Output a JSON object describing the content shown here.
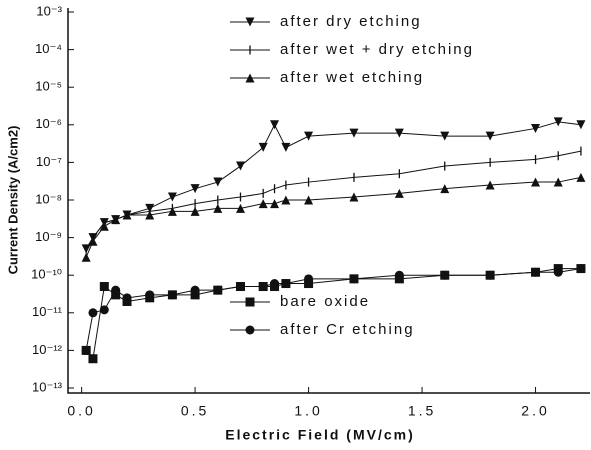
{
  "chart_data": {
    "type": "line",
    "xlabel": "Electric Field (MV/cm)",
    "ylabel": "Current Density (A/cm2)",
    "x": [
      0.02,
      0.05,
      0.1,
      0.15,
      0.2,
      0.3,
      0.4,
      0.5,
      0.6,
      0.7,
      0.8,
      0.85,
      0.9,
      1.0,
      1.2,
      1.4,
      1.6,
      1.8,
      2.0,
      2.1,
      2.2
    ],
    "series": [
      {
        "name": "after dry etching",
        "color": "#111111",
        "marker": "triangle-down",
        "values": [
          5e-10,
          1e-09,
          2.5e-09,
          3e-09,
          4e-09,
          6e-09,
          1.2e-08,
          2e-08,
          3e-08,
          8e-08,
          2.5e-07,
          1e-06,
          2.5e-07,
          5e-07,
          6e-07,
          6e-07,
          5e-07,
          5e-07,
          8e-07,
          1.2e-06,
          1e-06
        ]
      },
      {
        "name": "after wet + dry etching",
        "color": "#111111",
        "marker": "vline",
        "values": [
          5e-10,
          1e-09,
          2.5e-09,
          3e-09,
          4e-09,
          5e-09,
          6e-09,
          8e-09,
          1e-08,
          1.2e-08,
          1.5e-08,
          2e-08,
          2.5e-08,
          3e-08,
          4e-08,
          5e-08,
          8e-08,
          1e-07,
          1.2e-07,
          1.5e-07,
          2e-07
        ]
      },
      {
        "name": "after wet etching",
        "color": "#111111",
        "marker": "triangle-up",
        "values": [
          3e-10,
          8e-10,
          2e-09,
          3e-09,
          4e-09,
          4e-09,
          5e-09,
          5e-09,
          6e-09,
          6e-09,
          8e-09,
          8e-09,
          1e-08,
          1e-08,
          1.2e-08,
          1.5e-08,
          2e-08,
          2.5e-08,
          3e-08,
          3e-08,
          4e-08
        ]
      },
      {
        "name": "bare oxide",
        "color": "#111111",
        "marker": "square",
        "values": [
          1e-12,
          6e-13,
          5e-11,
          3e-11,
          2e-11,
          2.5e-11,
          3e-11,
          3e-11,
          4e-11,
          5e-11,
          5e-11,
          5e-11,
          6e-11,
          6e-11,
          8e-11,
          8e-11,
          1e-10,
          1e-10,
          1.2e-10,
          1.5e-10,
          1.5e-10
        ]
      },
      {
        "name": "after Cr etching",
        "color": "#111111",
        "marker": "circle",
        "values": [
          1e-12,
          1e-11,
          1.2e-11,
          4e-11,
          2.5e-11,
          3e-11,
          3e-11,
          4e-11,
          4e-11,
          5e-11,
          5e-11,
          6e-11,
          6e-11,
          8e-11,
          8e-11,
          1e-10,
          1e-10,
          1e-10,
          1.2e-10,
          1.2e-10,
          1.5e-10
        ]
      }
    ],
    "xlim": [
      -0.06,
      2.24
    ],
    "xticks": [
      {
        "value": 0,
        "label": "0.0"
      },
      0.5,
      {
        "value": 1,
        "label": "1.0"
      },
      1.5,
      {
        "value": 2,
        "label": "2.0"
      }
    ],
    "ylim": [
      1e-13,
      0.001
    ],
    "log_y": true,
    "yticks": [
      {
        "value": 1e-13,
        "label": "10⁻¹³"
      },
      {
        "value": 1e-12,
        "label": "10⁻¹²"
      },
      {
        "value": 1e-11,
        "label": "10⁻¹¹"
      },
      {
        "value": 1e-10,
        "label": "10⁻¹⁰"
      },
      {
        "value": 1e-09,
        "label": "10⁻⁹"
      },
      {
        "value": 1e-08,
        "label": "10⁻⁸"
      },
      {
        "value": 1e-07,
        "label": "10⁻⁷"
      },
      {
        "value": 1e-06,
        "label": "10⁻⁶"
      },
      {
        "value": 1e-05,
        "label": "10⁻⁵"
      },
      {
        "value": 0.0001,
        "label": "10⁻⁴"
      },
      {
        "value": 0.001,
        "label": "10⁻³"
      }
    ],
    "grid": false
  }
}
